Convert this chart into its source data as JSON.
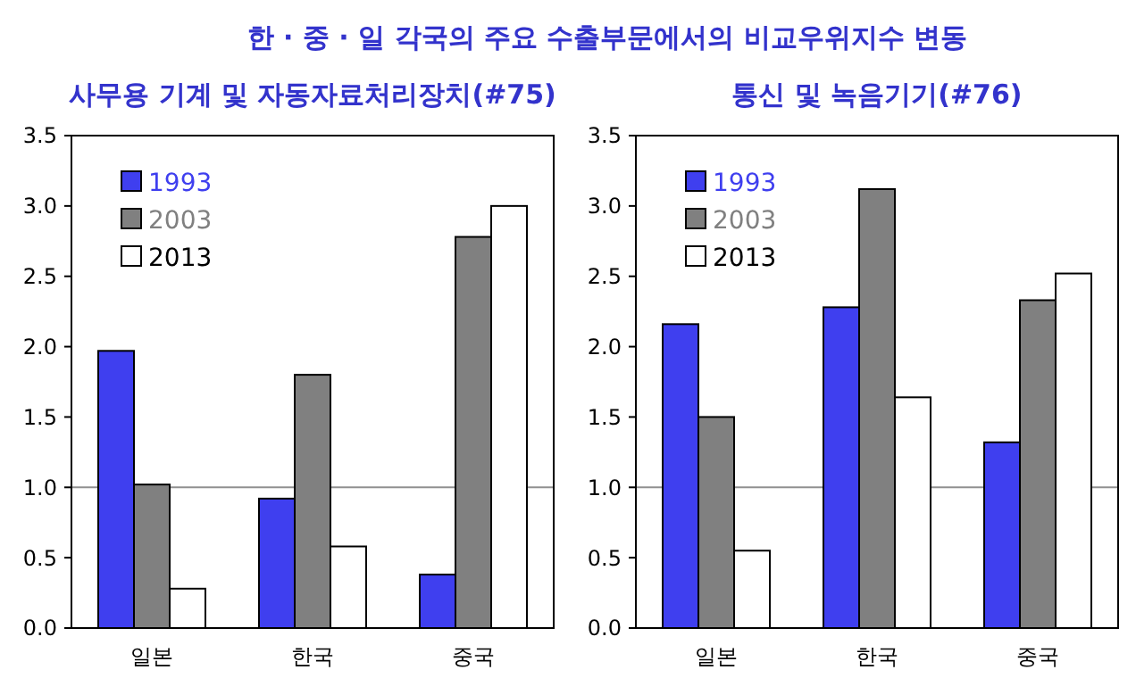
{
  "chart_data": [
    {
      "type": "bar",
      "title": "한 · 중 · 일 각국의 주요 수출부문에서의 비교우위지수 변동",
      "subtitle": "사무용 기계 및 자동자료처리장치(#75)",
      "categories": [
        "일본",
        "한국",
        "중국"
      ],
      "series": [
        {
          "name": "1993",
          "color": "#3f3fef",
          "values": [
            1.97,
            0.92,
            0.38
          ]
        },
        {
          "name": "2003",
          "color": "#808080",
          "values": [
            1.02,
            1.8,
            2.78
          ]
        },
        {
          "name": "2013",
          "color": "#ffffff",
          "values": [
            0.28,
            0.58,
            3.0
          ]
        }
      ],
      "ylim": [
        0,
        3.5
      ],
      "yticks": [
        {
          "value": 0,
          "label": "0.0"
        },
        {
          "value": 0.5,
          "label": "0.5"
        },
        {
          "value": 1,
          "label": "1.0"
        },
        {
          "value": 1.5,
          "label": "1.5"
        },
        {
          "value": 2,
          "label": "2.0"
        },
        {
          "value": 2.5,
          "label": "2.5"
        },
        {
          "value": 3,
          "label": "3.0"
        },
        {
          "value": 3.5,
          "label": "3.5"
        }
      ],
      "ref_lines": [
        {
          "axis": "y",
          "value": 1,
          "color": "#909090"
        }
      ],
      "legend": "top left"
    },
    {
      "type": "bar",
      "title": "통신 및 녹음기기(#76)",
      "categories": [
        "일본",
        "한국",
        "중국"
      ],
      "series": [
        {
          "name": "1993",
          "color": "#3f3fef",
          "values": [
            2.16,
            2.28,
            1.32
          ]
        },
        {
          "name": "2003",
          "color": "#808080",
          "values": [
            1.5,
            3.12,
            2.33
          ]
        },
        {
          "name": "2013",
          "color": "#ffffff",
          "values": [
            0.55,
            1.64,
            2.52
          ]
        }
      ],
      "ylim": [
        0,
        3.5
      ],
      "yticks": [
        {
          "value": 0,
          "label": "0.0"
        },
        {
          "value": 0.5,
          "label": "0.5"
        },
        {
          "value": 1,
          "label": "1.0"
        },
        {
          "value": 1.5,
          "label": "1.5"
        },
        {
          "value": 2,
          "label": "2.0"
        },
        {
          "value": 2.5,
          "label": "2.5"
        },
        {
          "value": 3,
          "label": "3.0"
        },
        {
          "value": 3.5,
          "label": "3.5"
        }
      ],
      "ref_lines": [
        {
          "axis": "y",
          "value": 1,
          "color": "#909090"
        }
      ],
      "legend": "top left"
    }
  ]
}
